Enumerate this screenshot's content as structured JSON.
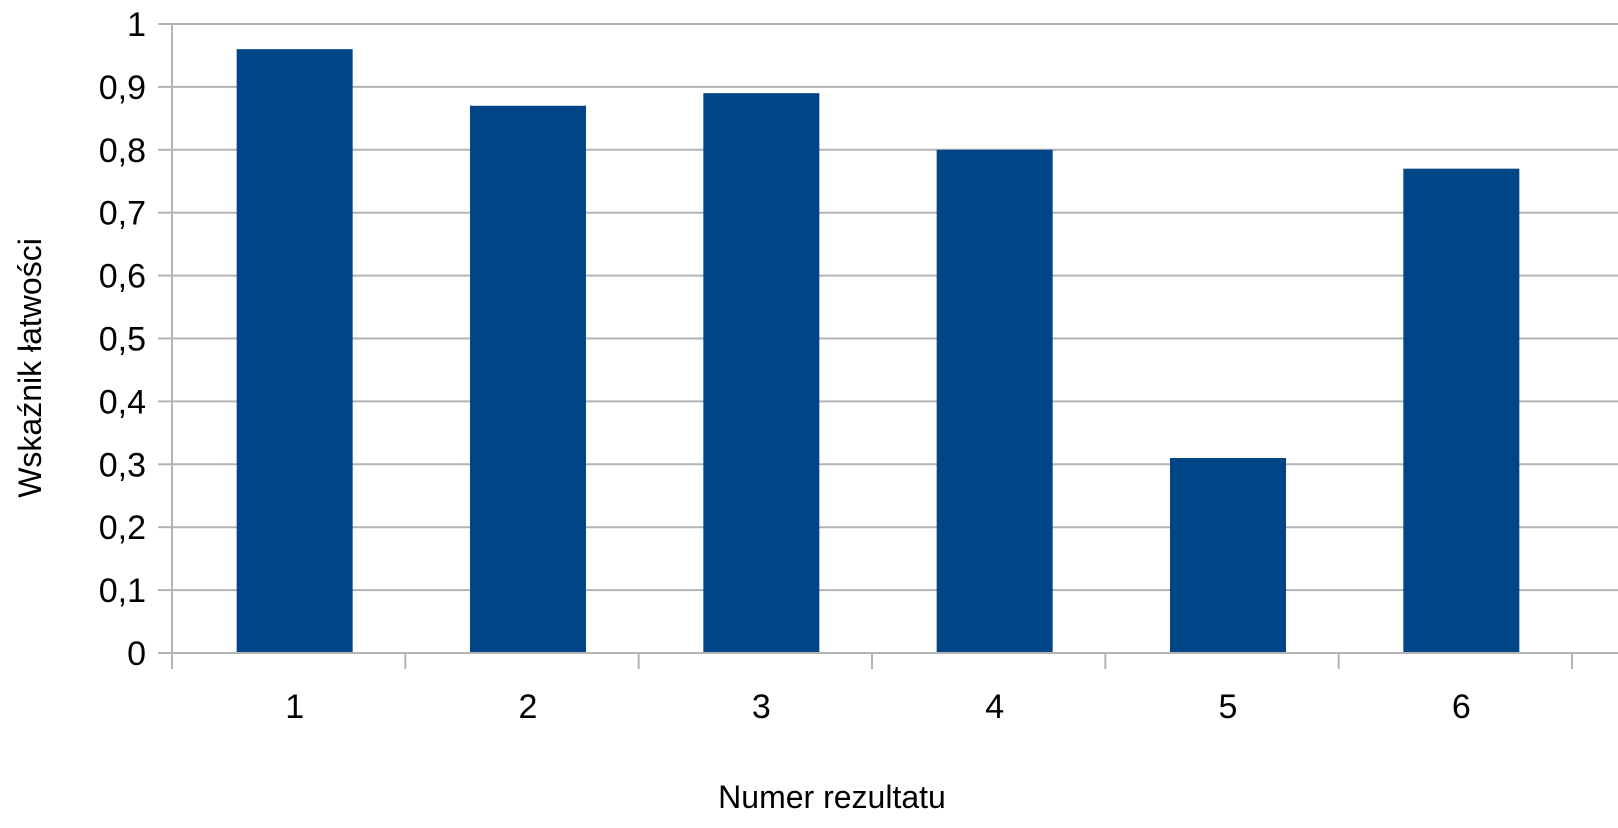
{
  "chart_data": {
    "type": "bar",
    "title": "",
    "xlabel": "Numer rezultatu",
    "ylabel": "Wskaźnik łatwości",
    "categories": [
      "1",
      "2",
      "3",
      "4",
      "5",
      "6"
    ],
    "values": [
      0.96,
      0.87,
      0.89,
      0.8,
      0.31,
      0.77
    ],
    "ylim": [
      0,
      1
    ],
    "yticks": [
      "0",
      "0,1",
      "0,2",
      "0,3",
      "0,4",
      "0,5",
      "0,6",
      "0,7",
      "0,8",
      "0,9",
      "1"
    ],
    "grid": true,
    "legend": "none",
    "colors": {
      "bar": "#004586",
      "grid": "#b3b3b3",
      "axis": "#b3b3b3"
    }
  }
}
